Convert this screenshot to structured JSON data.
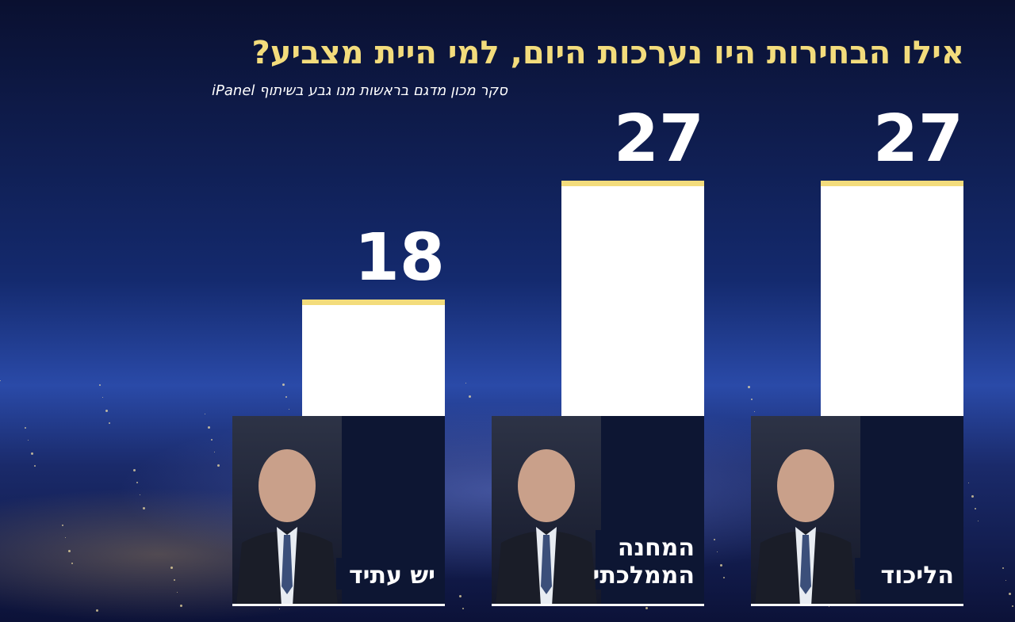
{
  "chart_data": {
    "type": "bar",
    "title": "אילו הבחירות היו נערכות היום, למי היית מצביע?",
    "subtitle": "סקר מכון מדגם בראשות מנו גבע בשיתוף iPanel",
    "categories": [
      "הליכוד",
      "המחנה הממלכתי",
      "יש עתיד"
    ],
    "values": [
      27,
      27,
      18
    ],
    "color": "#ffffff"
  }
}
